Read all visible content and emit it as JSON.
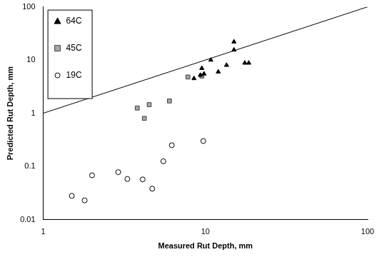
{
  "chart_data": {
    "type": "scatter",
    "x_label": "Measured Rut Depth, mm",
    "y_label": "Predicted Rut Depth, mm",
    "log": true,
    "grid": false,
    "legend": "top-left",
    "xlim": [
      1,
      100
    ],
    "xticks": [
      1,
      10,
      100
    ],
    "ylim": [
      0.01,
      100
    ],
    "yticks": [
      0.01,
      0.1,
      1,
      10,
      100
    ],
    "series": [
      {
        "name": "64C",
        "color": "#000000",
        "marker": "triangle",
        "x": [
          15,
          15,
          10.8,
          12,
          9.5,
          9.8,
          9.3,
          8.5,
          13.5,
          17.5,
          18.5
        ],
        "values": [
          22,
          15.5,
          10,
          6,
          7,
          5.5,
          5.2,
          4.5,
          8,
          8.8,
          8.8
        ]
      },
      {
        "name": "45C",
        "color": "#a6a6a6",
        "marker": "square",
        "x": [
          7.8,
          9.5,
          3.8,
          4.5,
          6,
          4.2
        ],
        "values": [
          4.8,
          5,
          1.25,
          1.45,
          1.7,
          0.8
        ]
      },
      {
        "name": "19C",
        "color": "#000000",
        "marker": "open_circle",
        "x": [
          1.5,
          1.8,
          2,
          2.9,
          3.3,
          4.1,
          4.7,
          5.5,
          6.2,
          9.7
        ],
        "values": [
          0.028,
          0.023,
          0.068,
          0.078,
          0.058,
          0.057,
          0.038,
          0.125,
          0.25,
          0.3
        ]
      },
      {
        "type": "line",
        "color": "#000000",
        "marker": "none",
        "line_style": "solid",
        "x": [
          1,
          100
        ],
        "values": [
          1,
          100
        ]
      }
    ]
  }
}
